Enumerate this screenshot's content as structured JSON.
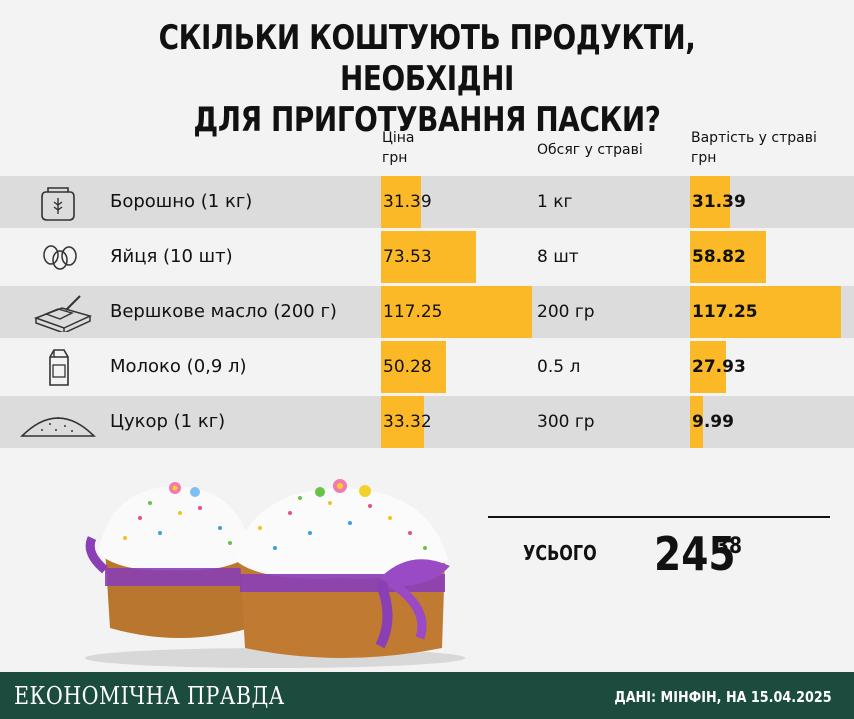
{
  "title_lines": [
    "СКІЛЬКИ КОШТУЮТЬ ПРОДУКТИ, НЕОБХІДНІ",
    "ДЛЯ ПРИГОТУВАННЯ ПАСКИ?"
  ],
  "headers": {
    "price": [
      "Ціна",
      "грн"
    ],
    "volume": "Обсяг у страві",
    "cost": [
      "Вартість у страві",
      "грн"
    ]
  },
  "chart_data": {
    "type": "table",
    "columns": [
      "Ціна грн",
      "Обсяг у страві",
      "Вартість у страві грн"
    ],
    "rows": [
      {
        "product": "Борошно (1 кг)",
        "icon": "flour-bag-icon",
        "price": 31.39,
        "price_label": "31.39",
        "quantity": "1 кг",
        "cost": 31.39,
        "cost_label": "31.39"
      },
      {
        "product": "Яйця (10 шт)",
        "icon": "eggs-icon",
        "price": 73.53,
        "price_label": "73.53",
        "quantity": "8 шт",
        "cost": 58.82,
        "cost_label": "58.82"
      },
      {
        "product": "Вершкове масло (200 г)",
        "icon": "butter-icon",
        "price": 117.25,
        "price_label": "117.25",
        "quantity": "200 гр",
        "cost": 117.25,
        "cost_label": "117.25"
      },
      {
        "product": "Молоко (0,9 л)",
        "icon": "milk-carton-icon",
        "price": 50.28,
        "price_label": "50.28",
        "quantity": "0.5 л",
        "cost": 27.93,
        "cost_label": "27.93"
      },
      {
        "product": "Цукор (1 кг)",
        "icon": "sugar-pile-icon",
        "price": 33.32,
        "price_label": "33.32",
        "quantity": "300 гр",
        "cost": 9.99,
        "cost_label": "9.99"
      }
    ],
    "bar_max": 117.25
  },
  "total": {
    "label": "УСЬОГО",
    "main": "245",
    "fraction": "38"
  },
  "footer": {
    "brand": "ЕКОНОМІЧНА ПРАВДА",
    "source": "ДАНІ: МІНФІН, НА 15.04.2025"
  },
  "colors": {
    "bar": "#fbb827",
    "row_shade": "#dcdcdc",
    "footer": "#1b4c3e",
    "ribbon": "#8a3fb5"
  }
}
